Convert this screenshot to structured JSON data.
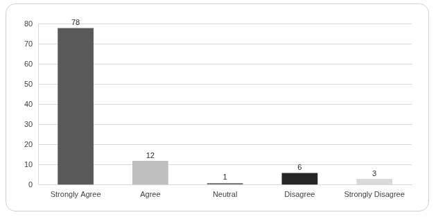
{
  "chart_data": {
    "type": "bar",
    "categories": [
      "Strongly Agree",
      "Agree",
      "Neutral",
      "Disagree",
      "Strongly Disagree"
    ],
    "values": [
      78,
      12,
      1,
      6,
      3
    ],
    "colors": [
      "#595959",
      "#bfbfbf",
      "#7f7f7f",
      "#262626",
      "#d9d9d9"
    ],
    "ylim": [
      0,
      80
    ],
    "yticks": [
      0,
      10,
      20,
      30,
      40,
      50,
      60,
      70,
      80
    ],
    "grid": true,
    "data_labels": true
  }
}
